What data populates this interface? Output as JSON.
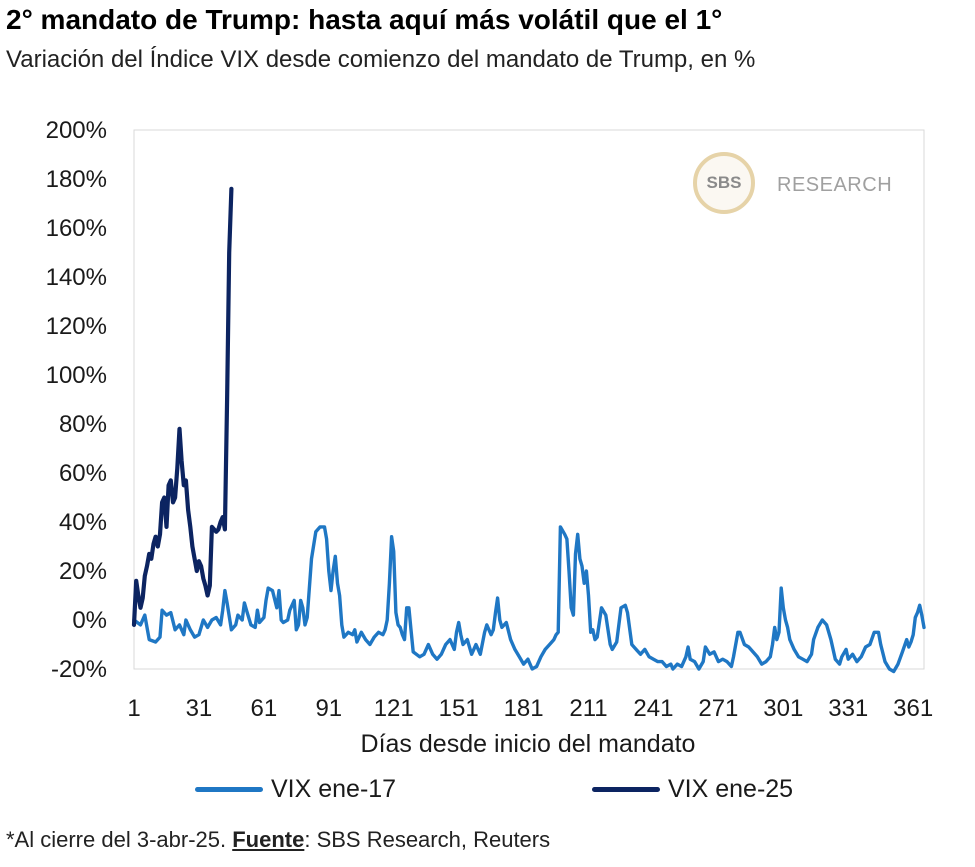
{
  "title": "2° mandato de Trump: hasta aquí más volátil que el 1°",
  "subtitle": "Variación del Índice VIX desde comienzo del mandato de Trump, en %",
  "logo": {
    "mark": "SBS",
    "text": "RESEARCH"
  },
  "footnote": {
    "prefix": "*Al cierre del 3-abr-25. ",
    "source_label": "Fuente",
    "source_text": ": SBS Research, Reuters"
  },
  "colors": {
    "vix17": "#1f77c4",
    "vix25": "#0c2461",
    "grid": "#d9d9d9"
  },
  "chart_data": {
    "type": "line",
    "title": "2° mandato de Trump: hasta aquí más volátil que el 1°",
    "subtitle": "Variación del Índice VIX desde comienzo del mandato de Trump, en %",
    "xlabel": "Días desde inicio del mandato",
    "ylabel": "",
    "xlim": [
      1,
      366
    ],
    "ylim": [
      -20,
      200
    ],
    "x_ticks": [
      1,
      31,
      61,
      91,
      121,
      151,
      181,
      211,
      241,
      271,
      301,
      331,
      361
    ],
    "y_ticks": [
      -20,
      0,
      20,
      40,
      60,
      80,
      100,
      120,
      140,
      160,
      180,
      200
    ],
    "y_tick_labels": [
      "-20%",
      "0%",
      "20%",
      "40%",
      "60%",
      "80%",
      "100%",
      "120%",
      "140%",
      "160%",
      "180%",
      "200%"
    ],
    "grid": "none",
    "legend_position": "bottom",
    "series": [
      {
        "name": "VIX ene-17",
        "points": [
          [
            1,
            0
          ],
          [
            4,
            -2
          ],
          [
            6,
            2
          ],
          [
            8,
            -8
          ],
          [
            11,
            -9
          ],
          [
            13,
            -7
          ],
          [
            14,
            4
          ],
          [
            16,
            2
          ],
          [
            18,
            3
          ],
          [
            20,
            -4
          ],
          [
            22,
            -2
          ],
          [
            24,
            -6
          ],
          [
            25,
            0
          ],
          [
            27,
            -4
          ],
          [
            29,
            -7
          ],
          [
            31,
            -6
          ],
          [
            33,
            0
          ],
          [
            35,
            -3
          ],
          [
            37,
            0
          ],
          [
            39,
            1
          ],
          [
            41,
            -2
          ],
          [
            42,
            4
          ],
          [
            43,
            12
          ],
          [
            44,
            7
          ],
          [
            46,
            -4
          ],
          [
            48,
            -2
          ],
          [
            49,
            2
          ],
          [
            51,
            0
          ],
          [
            52,
            7
          ],
          [
            53,
            4
          ],
          [
            55,
            -2
          ],
          [
            57,
            -3
          ],
          [
            58,
            4
          ],
          [
            59,
            -1
          ],
          [
            61,
            1
          ],
          [
            62,
            8
          ],
          [
            63,
            13
          ],
          [
            65,
            12
          ],
          [
            67,
            5
          ],
          [
            68,
            12
          ],
          [
            69,
            0
          ],
          [
            70,
            -1
          ],
          [
            72,
            0
          ],
          [
            73,
            4
          ],
          [
            75,
            8
          ],
          [
            76,
            -4
          ],
          [
            77,
            -2
          ],
          [
            78,
            8
          ],
          [
            79,
            5
          ],
          [
            80,
            -2
          ],
          [
            81,
            1
          ],
          [
            83,
            25
          ],
          [
            85,
            36
          ],
          [
            87,
            38
          ],
          [
            89,
            38
          ],
          [
            90,
            33
          ],
          [
            91,
            20
          ],
          [
            92,
            12
          ],
          [
            93,
            20
          ],
          [
            94,
            26
          ],
          [
            95,
            15
          ],
          [
            96,
            10
          ],
          [
            97,
            -2
          ],
          [
            98,
            -7
          ],
          [
            100,
            -5
          ],
          [
            102,
            -6
          ],
          [
            103,
            -4
          ],
          [
            104,
            -9
          ],
          [
            106,
            -5
          ],
          [
            108,
            -8
          ],
          [
            110,
            -10
          ],
          [
            112,
            -7
          ],
          [
            114,
            -5
          ],
          [
            116,
            -6
          ],
          [
            117,
            -4
          ],
          [
            118,
            0
          ],
          [
            119,
            15
          ],
          [
            120,
            34
          ],
          [
            121,
            28
          ],
          [
            122,
            3
          ],
          [
            123,
            -2
          ],
          [
            124,
            -3
          ],
          [
            125,
            -6
          ],
          [
            126,
            -8
          ],
          [
            127,
            5
          ],
          [
            128,
            5
          ],
          [
            129,
            -4
          ],
          [
            130,
            -13
          ],
          [
            133,
            -15
          ],
          [
            135,
            -14
          ],
          [
            137,
            -10
          ],
          [
            139,
            -14
          ],
          [
            141,
            -16
          ],
          [
            143,
            -14
          ],
          [
            145,
            -10
          ],
          [
            147,
            -8
          ],
          [
            149,
            -12
          ],
          [
            150,
            -5
          ],
          [
            151,
            -1
          ],
          [
            152,
            -6
          ],
          [
            153,
            -10
          ],
          [
            155,
            -8
          ],
          [
            157,
            -14
          ],
          [
            159,
            -10
          ],
          [
            161,
            -14
          ],
          [
            163,
            -5
          ],
          [
            164,
            -2
          ],
          [
            166,
            -6
          ],
          [
            167,
            -4
          ],
          [
            168,
            3
          ],
          [
            169,
            9
          ],
          [
            170,
            0
          ],
          [
            171,
            -3
          ],
          [
            173,
            -1
          ],
          [
            175,
            -8
          ],
          [
            177,
            -12
          ],
          [
            179,
            -15
          ],
          [
            181,
            -18
          ],
          [
            183,
            -16
          ],
          [
            185,
            -20
          ],
          [
            187,
            -19
          ],
          [
            189,
            -15
          ],
          [
            191,
            -12
          ],
          [
            193,
            -10
          ],
          [
            195,
            -8
          ],
          [
            196,
            -6
          ],
          [
            197,
            -5
          ],
          [
            198,
            38
          ],
          [
            200,
            35
          ],
          [
            201,
            33
          ],
          [
            202,
            20
          ],
          [
            203,
            5
          ],
          [
            204,
            2
          ],
          [
            205,
            27
          ],
          [
            206,
            35
          ],
          [
            207,
            25
          ],
          [
            208,
            22
          ],
          [
            209,
            15
          ],
          [
            210,
            20
          ],
          [
            211,
            10
          ],
          [
            212,
            -5
          ],
          [
            213,
            -4
          ],
          [
            214,
            -8
          ],
          [
            215,
            -7
          ],
          [
            217,
            5
          ],
          [
            219,
            2
          ],
          [
            221,
            -10
          ],
          [
            222,
            -12
          ],
          [
            224,
            -9
          ],
          [
            226,
            5
          ],
          [
            228,
            6
          ],
          [
            229,
            3
          ],
          [
            231,
            -10
          ],
          [
            233,
            -12
          ],
          [
            235,
            -14
          ],
          [
            237,
            -12
          ],
          [
            239,
            -15
          ],
          [
            241,
            -16
          ],
          [
            243,
            -17
          ],
          [
            245,
            -17
          ],
          [
            247,
            -19
          ],
          [
            249,
            -18
          ],
          [
            250,
            -20
          ],
          [
            252,
            -18
          ],
          [
            254,
            -19
          ],
          [
            256,
            -15
          ],
          [
            257,
            -11
          ],
          [
            258,
            -16
          ],
          [
            260,
            -17
          ],
          [
            262,
            -20
          ],
          [
            264,
            -17
          ],
          [
            265,
            -11
          ],
          [
            267,
            -14
          ],
          [
            269,
            -13
          ],
          [
            271,
            -17
          ],
          [
            273,
            -16
          ],
          [
            275,
            -17
          ],
          [
            277,
            -19
          ],
          [
            278,
            -15
          ],
          [
            280,
            -5
          ],
          [
            281,
            -5
          ],
          [
            283,
            -10
          ],
          [
            285,
            -11
          ],
          [
            287,
            -13
          ],
          [
            289,
            -15
          ],
          [
            291,
            -18
          ],
          [
            293,
            -17
          ],
          [
            295,
            -15
          ],
          [
            296,
            -10
          ],
          [
            297,
            -3
          ],
          [
            298,
            -8
          ],
          [
            299,
            -5
          ],
          [
            300,
            13
          ],
          [
            301,
            5
          ],
          [
            302,
            0
          ],
          [
            303,
            -3
          ],
          [
            304,
            -8
          ],
          [
            306,
            -12
          ],
          [
            308,
            -15
          ],
          [
            310,
            -16
          ],
          [
            312,
            -17
          ],
          [
            314,
            -14
          ],
          [
            315,
            -8
          ],
          [
            317,
            -3
          ],
          [
            319,
            0
          ],
          [
            321,
            -2
          ],
          [
            323,
            -8
          ],
          [
            325,
            -16
          ],
          [
            327,
            -18
          ],
          [
            328,
            -15
          ],
          [
            330,
            -12
          ],
          [
            331,
            -16
          ],
          [
            333,
            -14
          ],
          [
            335,
            -17
          ],
          [
            337,
            -15
          ],
          [
            339,
            -11
          ],
          [
            341,
            -10
          ],
          [
            343,
            -5
          ],
          [
            345,
            -5
          ],
          [
            346,
            -10
          ],
          [
            348,
            -17
          ],
          [
            350,
            -20
          ],
          [
            352,
            -21
          ],
          [
            354,
            -18
          ],
          [
            356,
            -13
          ],
          [
            358,
            -8
          ],
          [
            359,
            -11
          ],
          [
            360,
            -9
          ],
          [
            361,
            -6
          ],
          [
            362,
            1
          ],
          [
            363,
            3
          ],
          [
            364,
            6
          ],
          [
            365,
            2
          ],
          [
            366,
            -3
          ]
        ]
      },
      {
        "name": "VIX ene-25",
        "points": [
          [
            1,
            -2
          ],
          [
            2,
            16
          ],
          [
            3,
            10
          ],
          [
            4,
            5
          ],
          [
            5,
            9
          ],
          [
            6,
            18
          ],
          [
            7,
            22
          ],
          [
            8,
            27
          ],
          [
            9,
            25
          ],
          [
            10,
            31
          ],
          [
            11,
            34
          ],
          [
            12,
            30
          ],
          [
            13,
            35
          ],
          [
            14,
            48
          ],
          [
            15,
            50
          ],
          [
            16,
            38
          ],
          [
            17,
            55
          ],
          [
            18,
            57
          ],
          [
            19,
            48
          ],
          [
            20,
            50
          ],
          [
            21,
            62
          ],
          [
            22,
            78
          ],
          [
            23,
            65
          ],
          [
            24,
            55
          ],
          [
            25,
            57
          ],
          [
            26,
            45
          ],
          [
            27,
            38
          ],
          [
            28,
            30
          ],
          [
            29,
            25
          ],
          [
            30,
            20
          ],
          [
            31,
            24
          ],
          [
            32,
            22
          ],
          [
            33,
            17
          ],
          [
            34,
            14
          ],
          [
            35,
            10
          ],
          [
            36,
            14
          ],
          [
            37,
            38
          ],
          [
            38,
            37
          ],
          [
            39,
            36
          ],
          [
            40,
            37
          ],
          [
            41,
            40
          ],
          [
            42,
            42
          ],
          [
            43,
            37
          ],
          [
            44,
            90
          ],
          [
            45,
            150
          ],
          [
            46,
            176
          ]
        ]
      }
    ]
  }
}
